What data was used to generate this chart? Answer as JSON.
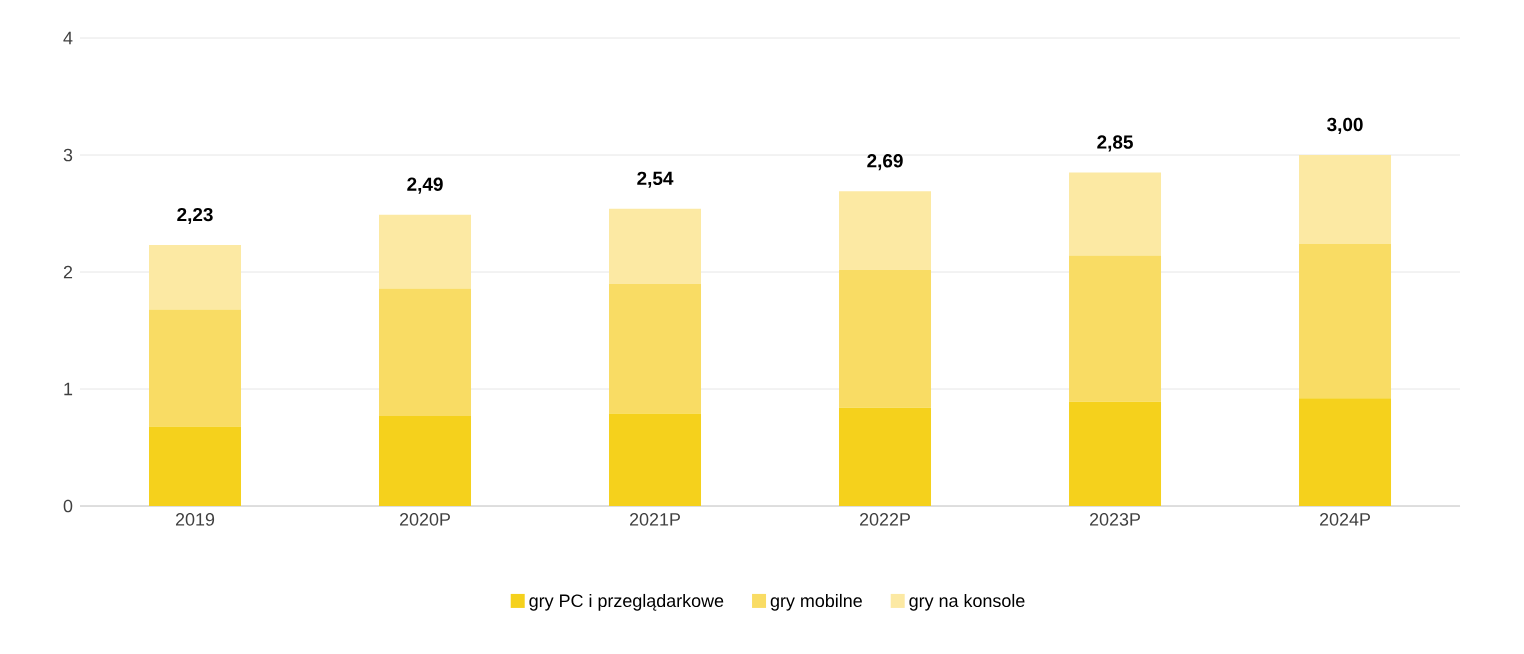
{
  "chart_data": {
    "type": "bar",
    "stacked": true,
    "categories": [
      "2019",
      "2020P",
      "2021P",
      "2022P",
      "2023P",
      "2024P"
    ],
    "series": [
      {
        "name": "gry PC i przeglądarkowe",
        "color": "#f5d11c",
        "values": [
          0.68,
          0.77,
          0.79,
          0.84,
          0.89,
          0.92
        ]
      },
      {
        "name": "gry mobilne",
        "color": "#f9dc64",
        "values": [
          1.0,
          1.09,
          1.11,
          1.18,
          1.25,
          1.32
        ]
      },
      {
        "name": "gry na konsole",
        "color": "#fce9a3",
        "values": [
          0.55,
          0.63,
          0.64,
          0.67,
          0.71,
          0.76
        ]
      }
    ],
    "totals": [
      "2,23",
      "2,49",
      "2,54",
      "2,69",
      "2,85",
      "3,00"
    ],
    "ylim": [
      0,
      4
    ],
    "yticks": [
      0,
      1,
      2,
      3,
      4
    ],
    "grid": "y",
    "legend": "bottom"
  }
}
